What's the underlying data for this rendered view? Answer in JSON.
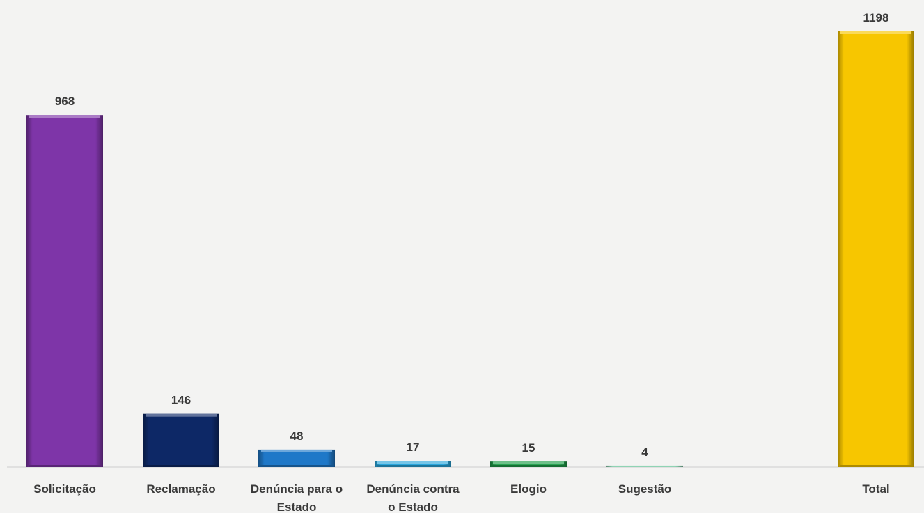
{
  "chart_data": {
    "type": "bar",
    "title": "",
    "xlabel": "",
    "ylabel": "",
    "grid": false,
    "legend": "none",
    "ylim": [
      0,
      1198
    ],
    "categories": [
      [
        "Solicitação"
      ],
      [
        "Reclamação"
      ],
      [
        "Denúncia para o",
        "Estado"
      ],
      [
        "Denúncia contra",
        "o Estado"
      ],
      [
        "Elogio"
      ],
      [
        "Sugestão"
      ],
      [
        "Total"
      ]
    ],
    "values": [
      968,
      146,
      48,
      17,
      15,
      4,
      1198
    ],
    "colors": [
      "#7e35a8",
      "#0d2866",
      "#1f78c8",
      "#2aa6dc",
      "#1f9e4a",
      "#8fd3b4",
      "#f7c600"
    ]
  }
}
